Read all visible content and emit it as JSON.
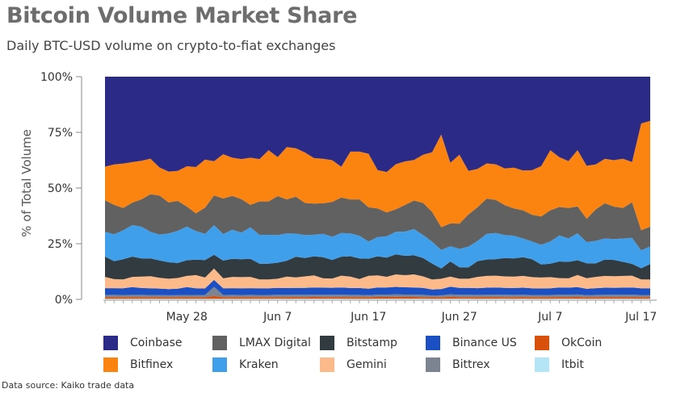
{
  "header": {
    "title": "Bitcoin Volume Market Share",
    "subtitle": "Daily BTC-USD volume on crypto-to-fiat exchanges"
  },
  "source": "Data source: Kaiko trade data",
  "chart_data": {
    "type": "area",
    "stacked": true,
    "normalized": true,
    "ylabel": "% of Total Volume",
    "yticks": [
      "0%",
      "25%",
      "50%",
      "75%",
      "100%"
    ],
    "ylim": [
      0,
      100
    ],
    "xticks": [
      "May 28",
      "Jun 7",
      "Jun 17",
      "Jun 27",
      "Jul 7",
      "Jul 17"
    ],
    "legend_position": "bottom",
    "x": [
      "May 19",
      "May 20",
      "May 21",
      "May 22",
      "May 23",
      "May 24",
      "May 25",
      "May 26",
      "May 27",
      "May 28",
      "May 29",
      "May 30",
      "May 31",
      "Jun 1",
      "Jun 2",
      "Jun 3",
      "Jun 4",
      "Jun 5",
      "Jun 6",
      "Jun 7",
      "Jun 8",
      "Jun 9",
      "Jun 10",
      "Jun 11",
      "Jun 12",
      "Jun 13",
      "Jun 14",
      "Jun 15",
      "Jun 16",
      "Jun 17",
      "Jun 18",
      "Jun 19",
      "Jun 20",
      "Jun 21",
      "Jun 22",
      "Jun 23",
      "Jun 24",
      "Jun 25",
      "Jun 26",
      "Jun 27",
      "Jun 28",
      "Jun 29",
      "Jun 30",
      "Jul 1",
      "Jul 2",
      "Jul 3",
      "Jul 4",
      "Jul 5",
      "Jul 6",
      "Jul 7",
      "Jul 8",
      "Jul 9",
      "Jul 10",
      "Jul 11",
      "Jul 12",
      "Jul 13",
      "Jul 14",
      "Jul 15",
      "Jul 16",
      "Jul 17",
      "Jul 18"
    ],
    "series": [
      {
        "name": "Itbit",
        "color": "#b3e5f7",
        "values": [
          0.3,
          0.3,
          0.3,
          0.3,
          0.3,
          0.3,
          0.3,
          0.3,
          0.3,
          0.3,
          0.3,
          0.3,
          0.3,
          0.3,
          0.3,
          0.3,
          0.3,
          0.3,
          0.3,
          0.3,
          0.3,
          0.3,
          0.3,
          0.3,
          0.3,
          0.3,
          0.3,
          0.3,
          0.3,
          0.3,
          0.3,
          0.3,
          0.3,
          0.3,
          0.3,
          0.3,
          0.3,
          0.3,
          0.3,
          0.3,
          0.3,
          0.3,
          0.3,
          0.3,
          0.3,
          0.3,
          0.3,
          0.3,
          0.3,
          0.3,
          0.3,
          0.3,
          0.3,
          0.3,
          0.3,
          0.3,
          0.3,
          0.3,
          0.3,
          0.3,
          0.3
        ]
      },
      {
        "name": "OkCoin",
        "color": "#d94f0c",
        "values": [
          0.7,
          0.7,
          0.7,
          0.7,
          0.7,
          0.7,
          0.7,
          0.7,
          0.7,
          0.7,
          0.7,
          0.7,
          1.2,
          0.7,
          0.7,
          0.7,
          0.7,
          0.7,
          0.7,
          0.7,
          0.7,
          0.7,
          0.7,
          0.7,
          0.7,
          0.7,
          0.7,
          0.7,
          0.7,
          0.7,
          0.7,
          0.7,
          0.7,
          0.7,
          0.7,
          0.7,
          0.7,
          0.7,
          0.7,
          0.7,
          0.7,
          0.7,
          0.7,
          0.7,
          0.7,
          0.7,
          0.7,
          0.7,
          0.7,
          0.7,
          0.7,
          0.7,
          0.7,
          0.7,
          0.7,
          0.7,
          0.7,
          0.7,
          0.7,
          0.7,
          0.7
        ]
      },
      {
        "name": "Bittrex",
        "color": "#7b8490",
        "values": [
          1,
          1,
          1,
          1,
          1,
          1,
          1,
          1,
          1,
          1,
          1,
          1,
          4,
          1,
          1,
          1,
          1,
          1,
          1,
          1,
          1,
          1,
          1,
          1,
          1,
          1,
          1,
          1,
          1,
          1,
          1,
          1,
          1,
          1,
          1,
          1,
          1,
          1,
          1,
          1,
          1,
          1,
          1,
          1,
          1,
          1,
          1,
          1,
          1,
          1,
          1,
          1,
          1,
          1,
          1,
          1,
          1,
          1,
          1,
          1,
          1
        ]
      },
      {
        "name": "Binance US",
        "color": "#1b4fc4",
        "values": [
          3,
          3,
          3,
          3.5,
          3,
          3,
          3,
          3,
          3,
          3.5,
          3,
          3,
          3,
          3,
          3,
          3,
          3,
          3,
          3,
          3,
          3,
          3,
          3,
          3,
          3,
          3,
          3,
          3,
          3,
          3,
          3,
          3,
          3,
          3,
          3,
          3,
          3,
          3,
          3,
          3,
          3,
          3,
          3,
          3,
          3,
          3,
          3,
          3,
          3,
          3,
          3,
          3,
          3,
          3,
          3,
          3,
          3,
          3,
          3,
          3,
          3
        ]
      },
      {
        "name": "Gemini",
        "color": "#fcb98a",
        "values": [
          5,
          4,
          4,
          4.5,
          5,
          5.5,
          5,
          5,
          5,
          5,
          6,
          5,
          5,
          4.5,
          5,
          5,
          5,
          4,
          4,
          4,
          5,
          4.5,
          5,
          5,
          4,
          4,
          5,
          5,
          4,
          6,
          5,
          4.5,
          5,
          5,
          5.5,
          5,
          5,
          5,
          4,
          4,
          4,
          5,
          5,
          5,
          5,
          5,
          5,
          5,
          5,
          5,
          4,
          4,
          5,
          5,
          5,
          5,
          5,
          5,
          5,
          4,
          4
        ]
      },
      {
        "name": "Bitstamp",
        "color": "#323b3f",
        "values": [
          9,
          8,
          9,
          9,
          8,
          8,
          8,
          8,
          7,
          7,
          7,
          8,
          6,
          8,
          8,
          8,
          8,
          7,
          7,
          7,
          7,
          9,
          8,
          8,
          9,
          8,
          8,
          9,
          9,
          8,
          8,
          8,
          8,
          8,
          8,
          8,
          8,
          5,
          6,
          5,
          5,
          7,
          7,
          7,
          8,
          8,
          8,
          8,
          6,
          6,
          7,
          7,
          6,
          7,
          6,
          7,
          7,
          6,
          5,
          5,
          7
        ]
      },
      {
        "name": "Kraken",
        "color": "#3f9fea",
        "values": [
          11,
          12,
          13,
          14,
          14,
          12,
          12,
          14,
          15,
          15,
          13,
          12,
          13,
          12,
          13,
          12,
          14,
          13,
          13,
          12,
          12,
          10,
          10,
          9,
          10,
          10,
          10,
          10,
          10,
          8,
          8,
          9,
          9,
          10,
          11,
          10,
          11,
          9,
          6,
          8,
          9,
          9,
          11,
          11,
          10,
          10,
          8,
          8,
          9,
          10,
          11,
          10,
          11,
          10,
          10,
          9,
          9,
          10,
          11,
          8,
          8
        ]
      },
      {
        "name": "LMAX Digital",
        "color": "#616161",
        "values": [
          14,
          13,
          10,
          10,
          12,
          17,
          18,
          15,
          14,
          9,
          8,
          12,
          13,
          16,
          15,
          15,
          10,
          15,
          15,
          17,
          15,
          16,
          14,
          13,
          13,
          15,
          15,
          15,
          16,
          16,
          12,
          10,
          9,
          11,
          12,
          14,
          15,
          11,
          9,
          11,
          14,
          15,
          15,
          14,
          13,
          12,
          12,
          12,
          13,
          14,
          12,
          13,
          11,
          11,
          14,
          15,
          14,
          13,
          15,
          9,
          9
        ]
      },
      {
        "name": "Bitfinex",
        "color": "#fb830f",
        "values": [
          15,
          18,
          20,
          18,
          17,
          16,
          13,
          15,
          14,
          18,
          21,
          22,
          15,
          20,
          17,
          18,
          21,
          19,
          23,
          17,
          23,
          21,
          22,
          19,
          19,
          18,
          13,
          21,
          21,
          25,
          16,
          17,
          18,
          18,
          17,
          21,
          30,
          45,
          24,
          30,
          19,
          17,
          15,
          15,
          16,
          18,
          17,
          20,
          23,
          27,
          21,
          20,
          23,
          25,
          20,
          19,
          20,
          21,
          17,
          48,
          48
        ]
      },
      {
        "name": "Coinbase",
        "color": "#2b2a87",
        "values": [
          40,
          39,
          39,
          38,
          37,
          37,
          42,
          46,
          44,
          40,
          41,
          38,
          37,
          35,
          36,
          37,
          36,
          37,
          33,
          35,
          31,
          31,
          33,
          34,
          35,
          36,
          38,
          33,
          33,
          36,
          39,
          40,
          35,
          35,
          35,
          34,
          38,
          28,
          34,
          34,
          41,
          41,
          37,
          37,
          40,
          40,
          40,
          42,
          41,
          33,
          34,
          36,
          30,
          42,
          39,
          35,
          36,
          35,
          36,
          21,
          20
        ]
      }
    ]
  },
  "legend": {
    "items": [
      {
        "label": "Coinbase",
        "color": "#2b2a87"
      },
      {
        "label": "LMAX Digital",
        "color": "#616161"
      },
      {
        "label": "Bitstamp",
        "color": "#323b3f"
      },
      {
        "label": "Binance US",
        "color": "#1b4fc4"
      },
      {
        "label": "OkCoin",
        "color": "#d94f0c"
      },
      {
        "label": "Bitfinex",
        "color": "#fb830f"
      },
      {
        "label": "Kraken",
        "color": "#3f9fea"
      },
      {
        "label": "Gemini",
        "color": "#fcb98a"
      },
      {
        "label": "Bittrex",
        "color": "#7b8490"
      },
      {
        "label": "Itbit",
        "color": "#b3e5f7"
      }
    ]
  }
}
